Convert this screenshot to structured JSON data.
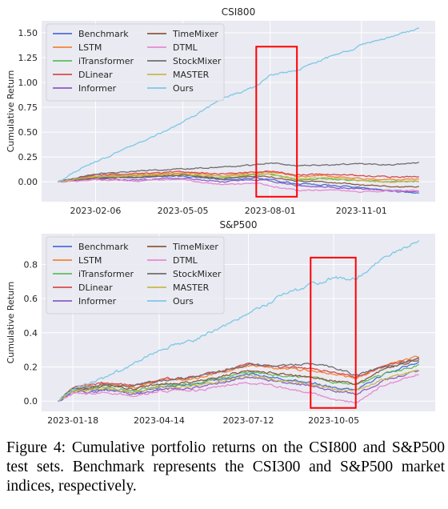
{
  "caption": "Figure 4: Cumulative portfolio returns on the CSI800 and S&P500 test sets. Benchmark represents the CSI300 and S&P500 market indices, respectively.",
  "legend_order": [
    "Benchmark",
    "TimeMixer",
    "LSTM",
    "DTML",
    "iTransformer",
    "StockMixer",
    "DLinear",
    "MASTER",
    "Informer",
    "Ours"
  ],
  "colors": {
    "Benchmark": "#4a6fd8",
    "LSTM": "#f08536",
    "iTransformer": "#5fbd5f",
    "DLinear": "#d94b4b",
    "Informer": "#8a5cc2",
    "TimeMixer": "#8b5a3c",
    "DTML": "#e58ad0",
    "StockMixer": "#6e6e6e",
    "MASTER": "#c8b84a",
    "Ours": "#7cc8e6",
    "highlight": "#ff0000"
  },
  "chart_data": [
    {
      "type": "line",
      "title": "CSI800",
      "xlabel": "",
      "ylabel": "Cumulative Return",
      "x_start": "2022-12-30",
      "x_end": "2023-12-29",
      "x_ticks": [
        "2023-02-06",
        "2023-05-05",
        "2023-08-01",
        "2023-11-01"
      ],
      "y_ticks": [
        0.0,
        0.25,
        0.5,
        0.75,
        1.0,
        1.25,
        1.5
      ],
      "y_tick_labels": [
        "0.00",
        "0.25",
        "0.50",
        "0.75",
        "1.00",
        "1.25",
        "1.50"
      ],
      "ylim": [
        -0.2,
        1.62
      ],
      "grid": true,
      "legend_position": "upper-left",
      "highlight_box": {
        "x": [
          "2023-07-18",
          "2023-08-28"
        ],
        "y": [
          -0.15,
          1.36
        ]
      },
      "series": [
        {
          "name": "Benchmark",
          "x": [
            "2022-12-30",
            "2023-02-06",
            "2023-03-20",
            "2023-05-05",
            "2023-06-15",
            "2023-07-18",
            "2023-08-01",
            "2023-08-28",
            "2023-09-25",
            "2023-11-01",
            "2023-12-01",
            "2023-12-29"
          ],
          "values": [
            0.0,
            0.05,
            0.04,
            0.06,
            0.02,
            0.04,
            0.02,
            -0.02,
            -0.03,
            -0.06,
            -0.09,
            -0.12
          ]
        },
        {
          "name": "LSTM",
          "x": [
            "2022-12-30",
            "2023-02-06",
            "2023-03-20",
            "2023-05-05",
            "2023-06-15",
            "2023-07-18",
            "2023-08-01",
            "2023-08-28",
            "2023-09-25",
            "2023-11-01",
            "2023-12-01",
            "2023-12-29"
          ],
          "values": [
            0.0,
            0.06,
            0.07,
            0.09,
            0.06,
            0.09,
            0.1,
            0.05,
            0.06,
            0.03,
            0.02,
            0.03
          ]
        },
        {
          "name": "iTransformer",
          "x": [
            "2022-12-30",
            "2023-02-06",
            "2023-03-20",
            "2023-05-05",
            "2023-06-15",
            "2023-07-18",
            "2023-08-01",
            "2023-08-28",
            "2023-09-25",
            "2023-11-01",
            "2023-12-01",
            "2023-12-29"
          ],
          "values": [
            0.0,
            0.05,
            0.06,
            0.07,
            0.04,
            0.07,
            0.08,
            0.02,
            0.03,
            0.01,
            0.0,
            0.0
          ]
        },
        {
          "name": "DLinear",
          "x": [
            "2022-12-30",
            "2023-02-06",
            "2023-03-20",
            "2023-05-05",
            "2023-06-15",
            "2023-07-18",
            "2023-08-01",
            "2023-08-28",
            "2023-09-25",
            "2023-11-01",
            "2023-12-01",
            "2023-12-29"
          ],
          "values": [
            0.0,
            0.07,
            0.08,
            0.1,
            0.08,
            0.1,
            0.11,
            0.07,
            0.08,
            0.06,
            0.05,
            0.05
          ]
        },
        {
          "name": "Informer",
          "x": [
            "2022-12-30",
            "2023-02-06",
            "2023-03-20",
            "2023-05-05",
            "2023-06-15",
            "2023-07-18",
            "2023-08-01",
            "2023-08-28",
            "2023-09-25",
            "2023-11-01",
            "2023-12-01",
            "2023-12-29"
          ],
          "values": [
            0.0,
            0.03,
            0.02,
            0.04,
            0.0,
            0.02,
            0.01,
            -0.04,
            -0.05,
            -0.07,
            -0.09,
            -0.1
          ]
        },
        {
          "name": "TimeMixer",
          "x": [
            "2022-12-30",
            "2023-02-06",
            "2023-03-20",
            "2023-05-05",
            "2023-06-15",
            "2023-07-18",
            "2023-08-01",
            "2023-08-28",
            "2023-09-25",
            "2023-11-01",
            "2023-12-01",
            "2023-12-29"
          ],
          "values": [
            0.0,
            0.04,
            0.05,
            0.07,
            0.03,
            0.06,
            0.05,
            0.01,
            0.0,
            -0.03,
            -0.05,
            -0.05
          ]
        },
        {
          "name": "DTML",
          "x": [
            "2022-12-30",
            "2023-02-06",
            "2023-03-20",
            "2023-05-05",
            "2023-06-15",
            "2023-07-18",
            "2023-08-01",
            "2023-08-28",
            "2023-09-25",
            "2023-11-01",
            "2023-12-01",
            "2023-12-29"
          ],
          "values": [
            0.0,
            0.02,
            0.01,
            0.02,
            -0.03,
            -0.01,
            -0.04,
            -0.09,
            -0.08,
            -0.1,
            -0.09,
            -0.09
          ]
        },
        {
          "name": "StockMixer",
          "x": [
            "2022-12-30",
            "2023-02-06",
            "2023-03-20",
            "2023-05-05",
            "2023-06-15",
            "2023-07-18",
            "2023-08-01",
            "2023-08-28",
            "2023-09-25",
            "2023-11-01",
            "2023-12-01",
            "2023-12-29"
          ],
          "values": [
            0.0,
            0.08,
            0.11,
            0.13,
            0.15,
            0.17,
            0.19,
            0.16,
            0.17,
            0.18,
            0.17,
            0.2
          ]
        },
        {
          "name": "MASTER",
          "x": [
            "2022-12-30",
            "2023-02-06",
            "2023-03-20",
            "2023-05-05",
            "2023-06-15",
            "2023-07-18",
            "2023-08-01",
            "2023-08-28",
            "2023-09-25",
            "2023-11-01",
            "2023-12-01",
            "2023-12-29"
          ],
          "values": [
            0.0,
            0.05,
            0.06,
            0.08,
            0.05,
            0.08,
            0.07,
            0.03,
            0.04,
            0.01,
            0.0,
            0.01
          ]
        },
        {
          "name": "Ours",
          "x": [
            "2022-12-30",
            "2023-01-20",
            "2023-02-06",
            "2023-03-20",
            "2023-04-20",
            "2023-05-05",
            "2023-06-15",
            "2023-07-18",
            "2023-08-01",
            "2023-08-28",
            "2023-09-25",
            "2023-10-20",
            "2023-11-01",
            "2023-12-01",
            "2023-12-29"
          ],
          "values": [
            0.0,
            0.12,
            0.2,
            0.38,
            0.52,
            0.6,
            0.84,
            0.96,
            1.07,
            1.12,
            1.24,
            1.32,
            1.38,
            1.46,
            1.54
          ]
        }
      ]
    },
    {
      "type": "line",
      "title": "S&P500",
      "xlabel": "",
      "ylabel": "Cumulative Return",
      "x_start": "2023-01-03",
      "x_end": "2023-12-29",
      "x_ticks": [
        "2023-01-18",
        "2023-04-14",
        "2023-07-12",
        "2023-10-05"
      ],
      "y_ticks": [
        0.0,
        0.2,
        0.4,
        0.6,
        0.8
      ],
      "y_tick_labels": [
        "0.0",
        "0.2",
        "0.4",
        "0.6",
        "0.8"
      ],
      "ylim": [
        -0.06,
        0.98
      ],
      "grid": true,
      "legend_position": "upper-left",
      "highlight_box": {
        "x": [
          "2023-09-12",
          "2023-10-27"
        ],
        "y": [
          -0.04,
          0.84
        ]
      },
      "series": [
        {
          "name": "Benchmark",
          "x": [
            "2023-01-03",
            "2023-01-18",
            "2023-02-20",
            "2023-03-20",
            "2023-04-14",
            "2023-05-20",
            "2023-07-12",
            "2023-08-15",
            "2023-09-12",
            "2023-10-05",
            "2023-10-27",
            "2023-11-25",
            "2023-12-29"
          ],
          "values": [
            0.0,
            0.06,
            0.07,
            0.05,
            0.08,
            0.1,
            0.16,
            0.13,
            0.11,
            0.08,
            0.07,
            0.16,
            0.23
          ]
        },
        {
          "name": "LSTM",
          "x": [
            "2023-01-03",
            "2023-01-18",
            "2023-02-20",
            "2023-03-20",
            "2023-04-14",
            "2023-05-20",
            "2023-07-12",
            "2023-08-15",
            "2023-09-12",
            "2023-10-05",
            "2023-10-27",
            "2023-11-25",
            "2023-12-29"
          ],
          "values": [
            0.0,
            0.08,
            0.1,
            0.08,
            0.12,
            0.13,
            0.21,
            0.19,
            0.18,
            0.16,
            0.13,
            0.21,
            0.26
          ]
        },
        {
          "name": "iTransformer",
          "x": [
            "2023-01-03",
            "2023-01-18",
            "2023-02-20",
            "2023-03-20",
            "2023-04-14",
            "2023-05-20",
            "2023-07-12",
            "2023-08-15",
            "2023-09-12",
            "2023-10-05",
            "2023-10-27",
            "2023-11-25",
            "2023-12-29"
          ],
          "values": [
            0.0,
            0.06,
            0.08,
            0.06,
            0.09,
            0.1,
            0.17,
            0.15,
            0.14,
            0.11,
            0.09,
            0.16,
            0.21
          ]
        },
        {
          "name": "DLinear",
          "x": [
            "2023-01-03",
            "2023-01-18",
            "2023-02-20",
            "2023-03-20",
            "2023-04-14",
            "2023-05-20",
            "2023-07-12",
            "2023-08-15",
            "2023-09-12",
            "2023-10-05",
            "2023-10-27",
            "2023-11-25",
            "2023-12-29"
          ],
          "values": [
            0.0,
            0.08,
            0.11,
            0.09,
            0.13,
            0.14,
            0.22,
            0.2,
            0.19,
            0.17,
            0.14,
            0.21,
            0.25
          ]
        },
        {
          "name": "Informer",
          "x": [
            "2023-01-03",
            "2023-01-18",
            "2023-02-20",
            "2023-03-20",
            "2023-04-14",
            "2023-05-20",
            "2023-07-12",
            "2023-08-15",
            "2023-09-12",
            "2023-10-05",
            "2023-10-27",
            "2023-11-25",
            "2023-12-29"
          ],
          "values": [
            0.0,
            0.05,
            0.06,
            0.04,
            0.07,
            0.08,
            0.14,
            0.11,
            0.09,
            0.06,
            0.04,
            0.12,
            0.18
          ]
        },
        {
          "name": "TimeMixer",
          "x": [
            "2023-01-03",
            "2023-01-18",
            "2023-02-20",
            "2023-03-20",
            "2023-04-14",
            "2023-05-20",
            "2023-07-12",
            "2023-08-15",
            "2023-09-12",
            "2023-10-05",
            "2023-10-27",
            "2023-11-25",
            "2023-12-29"
          ],
          "values": [
            0.0,
            0.07,
            0.09,
            0.07,
            0.1,
            0.11,
            0.18,
            0.16,
            0.14,
            0.12,
            0.1,
            0.19,
            0.24
          ]
        },
        {
          "name": "DTML",
          "x": [
            "2023-01-03",
            "2023-01-18",
            "2023-02-20",
            "2023-03-20",
            "2023-04-14",
            "2023-05-20",
            "2023-07-12",
            "2023-08-15",
            "2023-09-12",
            "2023-10-05",
            "2023-10-27",
            "2023-11-25",
            "2023-12-29"
          ],
          "values": [
            0.0,
            0.04,
            0.05,
            0.03,
            0.06,
            0.06,
            0.11,
            0.08,
            0.05,
            0.01,
            -0.01,
            0.1,
            0.16
          ]
        },
        {
          "name": "StockMixer",
          "x": [
            "2023-01-03",
            "2023-01-18",
            "2023-02-20",
            "2023-03-20",
            "2023-04-14",
            "2023-05-20",
            "2023-07-12",
            "2023-08-15",
            "2023-09-12",
            "2023-10-05",
            "2023-10-27",
            "2023-11-25",
            "2023-12-29"
          ],
          "values": [
            0.0,
            0.07,
            0.1,
            0.09,
            0.12,
            0.14,
            0.21,
            0.21,
            0.22,
            0.2,
            0.15,
            0.2,
            0.25
          ]
        },
        {
          "name": "MASTER",
          "x": [
            "2023-01-03",
            "2023-01-18",
            "2023-02-20",
            "2023-03-20",
            "2023-04-14",
            "2023-05-20",
            "2023-07-12",
            "2023-08-15",
            "2023-09-12",
            "2023-10-05",
            "2023-10-27",
            "2023-11-25",
            "2023-12-29"
          ],
          "values": [
            0.0,
            0.06,
            0.07,
            0.05,
            0.08,
            0.09,
            0.15,
            0.12,
            0.1,
            0.07,
            0.06,
            0.13,
            0.18
          ]
        },
        {
          "name": "Ours",
          "x": [
            "2023-01-03",
            "2023-01-18",
            "2023-02-20",
            "2023-03-20",
            "2023-04-14",
            "2023-05-20",
            "2023-07-12",
            "2023-08-15",
            "2023-09-12",
            "2023-10-05",
            "2023-10-27",
            "2023-11-25",
            "2023-12-29"
          ],
          "values": [
            0.0,
            0.07,
            0.14,
            0.22,
            0.3,
            0.36,
            0.51,
            0.62,
            0.68,
            0.72,
            0.72,
            0.84,
            0.94
          ]
        }
      ]
    }
  ]
}
